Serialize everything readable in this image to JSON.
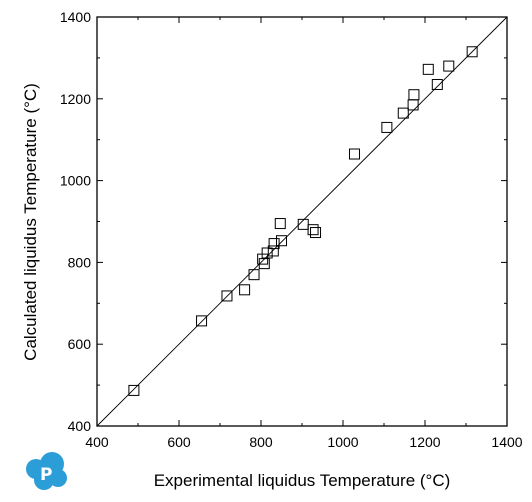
{
  "chart_data": {
    "type": "scatter",
    "title": "",
    "xlabel": "Experimental liquidus Temperature (°C)",
    "ylabel": "Calculated liquidus Temperature (°C)",
    "xlim": [
      400,
      1400
    ],
    "ylim": [
      400,
      1400
    ],
    "x_ticks": [
      400,
      600,
      800,
      1000,
      1200,
      1400
    ],
    "y_ticks": [
      400,
      600,
      800,
      1000,
      1200,
      1400
    ],
    "reference_line": {
      "type": "y=x",
      "from": [
        400,
        400
      ],
      "to": [
        1400,
        1400
      ]
    },
    "marker": "hollow-square",
    "grid": false,
    "legend": "none",
    "colors": {
      "marker": "#000000",
      "line": "#000000",
      "logo": "#2b9ed8"
    },
    "series": [
      {
        "points": [
          {
            "x": 490,
            "y": 487
          },
          {
            "x": 655,
            "y": 657
          },
          {
            "x": 717,
            "y": 718
          },
          {
            "x": 760,
            "y": 733
          },
          {
            "x": 783,
            "y": 770
          },
          {
            "x": 804,
            "y": 808
          },
          {
            "x": 808,
            "y": 797
          },
          {
            "x": 815,
            "y": 823
          },
          {
            "x": 830,
            "y": 828
          },
          {
            "x": 832,
            "y": 846
          },
          {
            "x": 847,
            "y": 895
          },
          {
            "x": 850,
            "y": 853
          },
          {
            "x": 903,
            "y": 893
          },
          {
            "x": 927,
            "y": 880
          },
          {
            "x": 933,
            "y": 873
          },
          {
            "x": 1028,
            "y": 1065
          },
          {
            "x": 1107,
            "y": 1130
          },
          {
            "x": 1147,
            "y": 1165
          },
          {
            "x": 1171,
            "y": 1185
          },
          {
            "x": 1173,
            "y": 1210
          },
          {
            "x": 1208,
            "y": 1272
          },
          {
            "x": 1230,
            "y": 1235
          },
          {
            "x": 1258,
            "y": 1280
          },
          {
            "x": 1315,
            "y": 1315
          }
        ]
      }
    ]
  },
  "logo": {
    "letter": "P",
    "icon": "cloud-logo-icon"
  }
}
